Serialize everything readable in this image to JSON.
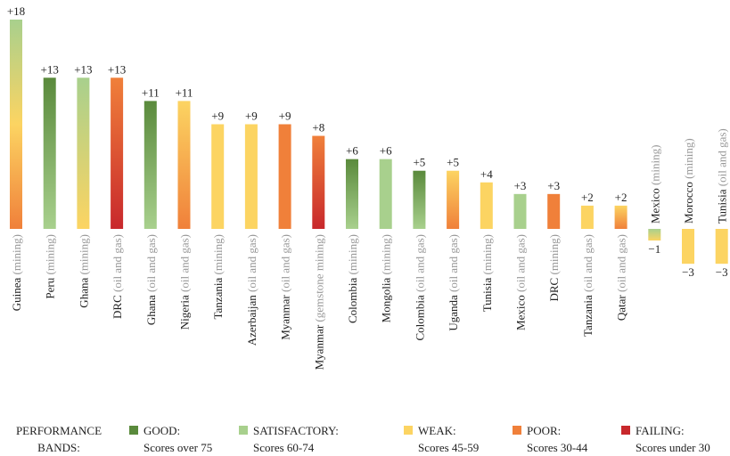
{
  "chart_data": {
    "type": "bar",
    "categories": [
      "Guinea",
      "Peru",
      "Ghana",
      "DRC",
      "Ghana",
      "Nigeria",
      "Tanzania",
      "Azerbaijan",
      "Myanmar",
      "Myanmar",
      "Colombia",
      "Mongolia",
      "Colombia",
      "Uganda",
      "Tunisia",
      "Mexico",
      "DRC",
      "Tanzania",
      "Qatar",
      "Mexico",
      "Morocco",
      "Tunisia"
    ],
    "sectors": [
      "(mining)",
      "(mining)",
      "(mining)",
      "(oil and gas)",
      "(oil and gas)",
      "(oil and gas)",
      "(mining)",
      "(oil and gas)",
      "(oil and gas)",
      "(gemstone mining)",
      "(mining)",
      "(mining)",
      "(oil and gas)",
      "(oil and gas)",
      "(mining)",
      "(oil and gas)",
      "(mining)",
      "(oil and gas)",
      "(oil and gas)",
      "(mining)",
      "(mining)",
      "(oil and gas)"
    ],
    "values": [
      18,
      13,
      13,
      13,
      11,
      11,
      9,
      9,
      9,
      8,
      6,
      6,
      5,
      5,
      4,
      3,
      3,
      2,
      2,
      -1,
      -3,
      -3
    ],
    "value_labels": [
      "+18",
      "+13",
      "+13",
      "+13",
      "+11",
      "+11",
      "+9",
      "+9",
      "+9",
      "+8",
      "+6",
      "+6",
      "+5",
      "+5",
      "+4",
      "+3",
      "+3",
      "+2",
      "+2",
      "−1",
      "−3",
      "−3"
    ],
    "bar_colors": [
      [
        "#a8d08d",
        "#fcd462",
        "#f0803a"
      ],
      [
        "#5a8a3c",
        "#a8d08d"
      ],
      [
        "#a8d08d",
        "#fcd462"
      ],
      [
        "#f0803a",
        "#c8282c"
      ],
      [
        "#5a8a3c",
        "#a8d08d"
      ],
      [
        "#fcd462",
        "#f0803a"
      ],
      [
        "#fcd462",
        "#fcd462"
      ],
      [
        "#fcd462",
        "#fcd462"
      ],
      [
        "#f0803a",
        "#f0803a"
      ],
      [
        "#f0803a",
        "#c8282c"
      ],
      [
        "#5a8a3c",
        "#a8d08d"
      ],
      [
        "#a8d08d",
        "#a8d08d"
      ],
      [
        "#5a8a3c",
        "#a8d08d"
      ],
      [
        "#fcd462",
        "#f0803a"
      ],
      [
        "#fcd462",
        "#fcd462"
      ],
      [
        "#a8d08d",
        "#a8d08d"
      ],
      [
        "#f0803a",
        "#f0803a"
      ],
      [
        "#fcd462",
        "#fcd462"
      ],
      [
        "#fcd462",
        "#f0803a"
      ],
      [
        "#a8d08d",
        "#fcd462"
      ],
      [
        "#fcd462",
        "#fcd462"
      ],
      [
        "#fcd462",
        "#fcd462"
      ]
    ],
    "legend": {
      "title": "PERFORMANCE BANDS:",
      "items": [
        {
          "color": "#5a8a3c",
          "label": "GOOD:",
          "detail": "Scores over 75"
        },
        {
          "color": "#a8d08d",
          "label": "SATISFACTORY:",
          "detail": "Scores 60-74"
        },
        {
          "color": "#fcd462",
          "label": "WEAK:",
          "detail": "Scores 45-59"
        },
        {
          "color": "#f0803a",
          "label": "POOR:",
          "detail": "Scores 30-44"
        },
        {
          "color": "#c8282c",
          "label": "FAILING:",
          "detail": "Scores under 30"
        }
      ]
    }
  }
}
